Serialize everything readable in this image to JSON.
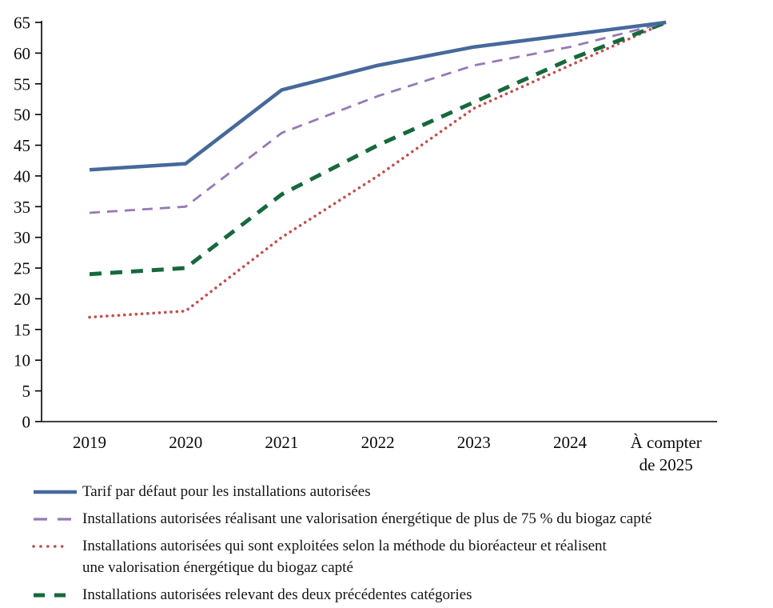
{
  "chart_data": {
    "type": "line",
    "title": "",
    "xlabel": "",
    "ylabel": "",
    "grid": false,
    "legend_position": "bottom",
    "categories": [
      "2019",
      "2020",
      "2021",
      "2022",
      "2023",
      "2024",
      "À compter\nde 2025"
    ],
    "y_axis": {
      "min": 0,
      "max": 65,
      "tick_step": 5,
      "ticks": [
        0,
        5,
        10,
        15,
        20,
        25,
        30,
        35,
        40,
        45,
        50,
        55,
        60,
        65
      ]
    },
    "series": [
      {
        "name": "Tarif par défaut pour les installations autorisées",
        "values": [
          41,
          42,
          54,
          58,
          61,
          63,
          65
        ],
        "color": "#46699b",
        "style": "solid",
        "width": 4.5
      },
      {
        "name": "Installations autorisées réalisant une valorisation énergétique de plus de 75 % du biogaz capté",
        "values": [
          34,
          35,
          47,
          53,
          58,
          61,
          65
        ],
        "color": "#9878b6",
        "style": "dashed",
        "width": 2.8
      },
      {
        "name": "Installations autorisées qui sont exploitées selon la méthode du bioréacteur et réalisent\nune valorisation énergétique du biogaz capté",
        "values": [
          17,
          18,
          30,
          40,
          51,
          58,
          65
        ],
        "color": "#c0504d",
        "style": "dotted",
        "width": 3.6
      },
      {
        "name": "Installations autorisées relevant des deux précédentes catégories",
        "values": [
          24,
          25,
          37,
          45,
          52,
          59,
          65
        ],
        "color": "#17693c",
        "style": "dashed-bold",
        "width": 5
      }
    ],
    "axis_color": "#000000"
  }
}
